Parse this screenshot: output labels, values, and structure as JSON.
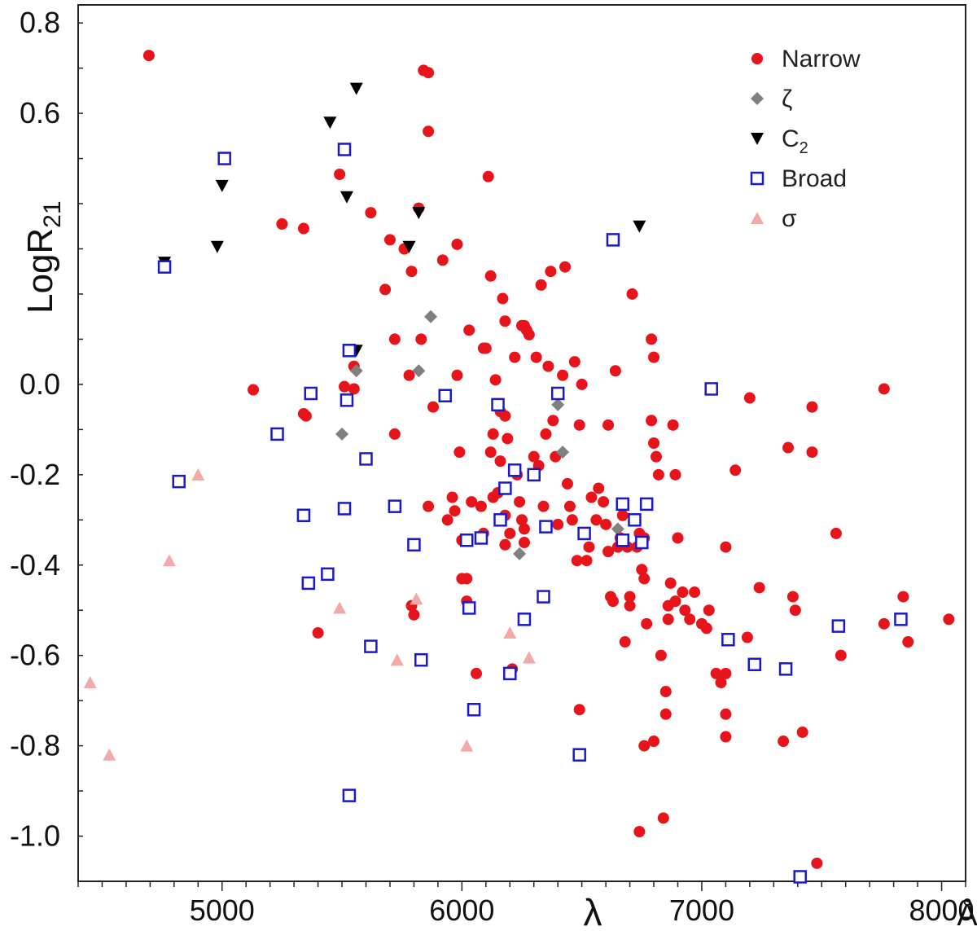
{
  "chart_data": {
    "type": "scatter",
    "title": "",
    "xlabel": "λ",
    "xunit": "Å",
    "ylabel_main": "LogR",
    "ylabel_sub": "21",
    "xlim": [
      4400,
      8100
    ],
    "ylim": [
      -1.1,
      0.84
    ],
    "x_ticks": [
      5000,
      6000,
      7000,
      8000
    ],
    "x_tick_labels": [
      "5000",
      "6000",
      "7000",
      "8000"
    ],
    "y_ticks": [
      0.8,
      0.6,
      0.0,
      -0.2,
      -0.4,
      -0.6,
      -0.8,
      -1.0
    ],
    "y_tick_labels": [
      "0.8",
      "0.6",
      "0.0",
      "-0.2",
      "-0.4",
      "-0.6",
      "-0.8",
      "-1.0"
    ],
    "grid": false,
    "legend_position": "top-right",
    "series": [
      {
        "name": "Narrow",
        "marker": "circle",
        "color": "#e8141c",
        "points": [
          [
            4695,
            0.728
          ],
          [
            5130,
            -0.012
          ],
          [
            5250,
            0.355
          ],
          [
            5340,
            0.345
          ],
          [
            5340,
            -0.065
          ],
          [
            5400,
            -0.55
          ],
          [
            5490,
            0.465
          ],
          [
            5510,
            -0.005
          ],
          [
            5550,
            0.04
          ],
          [
            5550,
            -0.01
          ],
          [
            5680,
            0.21
          ],
          [
            5700,
            0.32
          ],
          [
            5720,
            0.1
          ],
          [
            5720,
            -0.11
          ],
          [
            5760,
            0.3
          ],
          [
            5790,
            0.25
          ],
          [
            5780,
            0.02
          ],
          [
            5800,
            -0.51
          ],
          [
            5790,
            -0.49
          ],
          [
            5820,
            0.39
          ],
          [
            5830,
            0.1
          ],
          [
            5840,
            0.695
          ],
          [
            5860,
            0.69
          ],
          [
            5860,
            0.56
          ],
          [
            5860,
            -0.27
          ],
          [
            5880,
            -0.05
          ],
          [
            5920,
            0.275
          ],
          [
            5940,
            -0.3
          ],
          [
            5960,
            -0.25
          ],
          [
            5980,
            0.31
          ],
          [
            5970,
            -0.28
          ],
          [
            5980,
            0.02
          ],
          [
            5990,
            -0.15
          ],
          [
            6000,
            -0.43
          ],
          [
            6000,
            -0.345
          ],
          [
            6020,
            -0.48
          ],
          [
            6020,
            -0.43
          ],
          [
            6030,
            0.12
          ],
          [
            6040,
            -0.26
          ],
          [
            6060,
            -0.64
          ],
          [
            6080,
            -0.27
          ],
          [
            6090,
            -0.33
          ],
          [
            6100,
            0.08
          ],
          [
            6110,
            0.46
          ],
          [
            6120,
            0.24
          ],
          [
            6130,
            -0.11
          ],
          [
            6130,
            -0.25
          ],
          [
            6140,
            0.01
          ],
          [
            6150,
            -0.24
          ],
          [
            6160,
            -0.17
          ],
          [
            6170,
            0.19
          ],
          [
            6180,
            0.14
          ],
          [
            6180,
            -0.355
          ],
          [
            6180,
            -0.29
          ],
          [
            6190,
            -0.12
          ],
          [
            6200,
            -0.33
          ],
          [
            6210,
            -0.63
          ],
          [
            6220,
            0.06
          ],
          [
            6230,
            -0.2
          ],
          [
            6240,
            -0.26
          ],
          [
            6250,
            -0.3
          ],
          [
            6260,
            -0.32
          ],
          [
            6260,
            -0.35
          ],
          [
            6260,
            0.13
          ],
          [
            6270,
            0.12
          ],
          [
            6280,
            0.11
          ],
          [
            6300,
            -0.16
          ],
          [
            6320,
            -0.18
          ],
          [
            6330,
            0.22
          ],
          [
            6340,
            -0.27
          ],
          [
            6350,
            -0.11
          ],
          [
            6360,
            0.04
          ],
          [
            6370,
            0.25
          ],
          [
            6380,
            -0.08
          ],
          [
            6390,
            -0.16
          ],
          [
            6400,
            -0.31
          ],
          [
            6420,
            0.02
          ],
          [
            6430,
            0.26
          ],
          [
            6440,
            -0.22
          ],
          [
            6450,
            -0.27
          ],
          [
            6460,
            -0.3
          ],
          [
            6470,
            0.05
          ],
          [
            6480,
            -0.39
          ],
          [
            6490,
            -0.72
          ],
          [
            6490,
            -0.09
          ],
          [
            6500,
            0.0
          ],
          [
            6520,
            -0.39
          ],
          [
            6530,
            -0.36
          ],
          [
            6540,
            -0.25
          ],
          [
            6560,
            -0.3
          ],
          [
            6570,
            -0.23
          ],
          [
            6590,
            -0.26
          ],
          [
            6600,
            -0.31
          ],
          [
            6610,
            -0.37
          ],
          [
            6620,
            -0.47
          ],
          [
            6630,
            -0.48
          ],
          [
            6640,
            0.03
          ],
          [
            6650,
            -0.36
          ],
          [
            6660,
            -0.34
          ],
          [
            6670,
            -0.29
          ],
          [
            6680,
            -0.57
          ],
          [
            6690,
            -0.36
          ],
          [
            6700,
            -0.47
          ],
          [
            6700,
            -0.49
          ],
          [
            6710,
            0.2
          ],
          [
            6720,
            -0.3
          ],
          [
            6730,
            -0.36
          ],
          [
            6740,
            -0.33
          ],
          [
            6750,
            -0.41
          ],
          [
            6760,
            -0.34
          ],
          [
            6760,
            -0.43
          ],
          [
            6770,
            -0.53
          ],
          [
            6790,
            -0.08
          ],
          [
            6790,
            0.1
          ],
          [
            6800,
            0.06
          ],
          [
            6800,
            -0.13
          ],
          [
            6810,
            -0.16
          ],
          [
            6820,
            -0.2
          ],
          [
            6830,
            -0.6
          ],
          [
            6840,
            -0.96
          ],
          [
            6850,
            -0.73
          ],
          [
            6850,
            -0.68
          ],
          [
            6860,
            -0.52
          ],
          [
            6860,
            -0.49
          ],
          [
            6870,
            -0.44
          ],
          [
            6880,
            -0.09
          ],
          [
            6890,
            -0.2
          ],
          [
            6890,
            -0.48
          ],
          [
            6900,
            -0.34
          ],
          [
            6920,
            -0.46
          ],
          [
            6930,
            -0.5
          ],
          [
            6950,
            -0.52
          ],
          [
            6970,
            -0.46
          ],
          [
            7000,
            -0.53
          ],
          [
            7020,
            -0.54
          ],
          [
            7030,
            -0.5
          ],
          [
            7060,
            -0.64
          ],
          [
            7080,
            -0.66
          ],
          [
            7100,
            -0.36
          ],
          [
            7100,
            -0.73
          ],
          [
            7100,
            -0.64
          ],
          [
            7100,
            -0.78
          ],
          [
            7140,
            -0.19
          ],
          [
            7190,
            -0.56
          ],
          [
            7200,
            -0.03
          ],
          [
            7240,
            -0.45
          ],
          [
            7340,
            -0.79
          ],
          [
            7360,
            -0.14
          ],
          [
            7380,
            -0.47
          ],
          [
            7390,
            -0.5
          ],
          [
            7420,
            -0.77
          ],
          [
            7460,
            -0.05
          ],
          [
            7460,
            -0.15
          ],
          [
            7480,
            -1.06
          ],
          [
            7560,
            -0.33
          ],
          [
            7580,
            -0.6
          ],
          [
            7760,
            -0.01
          ],
          [
            7760,
            -0.53
          ],
          [
            7840,
            -0.47
          ],
          [
            7860,
            -0.57
          ],
          [
            8030,
            -0.52
          ],
          [
            6760,
            -0.8
          ],
          [
            6800,
            -0.79
          ],
          [
            6740,
            -0.99
          ],
          [
            6610,
            -0.09
          ],
          [
            5350,
            -0.07
          ],
          [
            5760,
            0.3
          ],
          [
            5620,
            0.38
          ],
          [
            6250,
            0.13
          ],
          [
            6310,
            0.06
          ],
          [
            6180,
            -0.07
          ],
          [
            6090,
            0.08
          ],
          [
            6160,
            -0.06
          ],
          [
            6120,
            -0.15
          ]
        ]
      },
      {
        "name": "ζ",
        "marker": "diamond",
        "color": "#808080",
        "points": [
          [
            5560,
            0.03
          ],
          [
            5500,
            -0.11
          ],
          [
            5820,
            0.03
          ],
          [
            5870,
            0.15
          ],
          [
            6400,
            -0.045
          ],
          [
            6420,
            -0.15
          ],
          [
            6240,
            -0.375
          ],
          [
            6650,
            -0.32
          ]
        ]
      },
      {
        "name": "C",
        "name_sub": "2",
        "marker": "triangle-down",
        "color": "#000000",
        "points": [
          [
            4760,
            0.27
          ],
          [
            4980,
            0.305
          ],
          [
            5000,
            0.44
          ],
          [
            5450,
            0.58
          ],
          [
            5520,
            0.415
          ],
          [
            5560,
            0.655
          ],
          [
            5560,
            0.075
          ],
          [
            5780,
            0.305
          ],
          [
            5820,
            0.38
          ],
          [
            6740,
            0.35
          ]
        ]
      },
      {
        "name": "Broad",
        "marker": "square-open",
        "color": "#1a1acc",
        "points": [
          [
            4760,
            0.26
          ],
          [
            4820,
            -0.215
          ],
          [
            5010,
            0.5
          ],
          [
            5230,
            -0.11
          ],
          [
            5340,
            -0.29
          ],
          [
            5360,
            -0.44
          ],
          [
            5370,
            -0.02
          ],
          [
            5440,
            -0.42
          ],
          [
            5510,
            -0.275
          ],
          [
            5510,
            0.52
          ],
          [
            5520,
            -0.035
          ],
          [
            5530,
            0.075
          ],
          [
            5530,
            -0.91
          ],
          [
            5600,
            -0.165
          ],
          [
            5620,
            -0.58
          ],
          [
            5720,
            -0.27
          ],
          [
            5800,
            -0.355
          ],
          [
            5830,
            -0.61
          ],
          [
            5930,
            -0.025
          ],
          [
            6020,
            -0.345
          ],
          [
            6030,
            -0.495
          ],
          [
            6050,
            -0.72
          ],
          [
            6080,
            -0.34
          ],
          [
            6150,
            -0.045
          ],
          [
            6160,
            -0.3
          ],
          [
            6180,
            -0.23
          ],
          [
            6200,
            -0.64
          ],
          [
            6220,
            -0.19
          ],
          [
            6260,
            -0.52
          ],
          [
            6300,
            -0.2
          ],
          [
            6340,
            -0.47
          ],
          [
            6350,
            -0.315
          ],
          [
            6400,
            -0.02
          ],
          [
            6490,
            -0.82
          ],
          [
            6510,
            -0.33
          ],
          [
            6630,
            0.32
          ],
          [
            6670,
            -0.265
          ],
          [
            6670,
            -0.345
          ],
          [
            6720,
            -0.3
          ],
          [
            6750,
            -0.35
          ],
          [
            6770,
            -0.265
          ],
          [
            7040,
            -0.01
          ],
          [
            7110,
            -0.565
          ],
          [
            7220,
            -0.62
          ],
          [
            7350,
            -0.63
          ],
          [
            7410,
            -1.09
          ],
          [
            7570,
            -0.535
          ],
          [
            7830,
            -0.52
          ]
        ]
      },
      {
        "name": "σ",
        "marker": "triangle-up",
        "color": "#f4a9a9",
        "points": [
          [
            4450,
            -0.66
          ],
          [
            4530,
            -0.82
          ],
          [
            4780,
            -0.39
          ],
          [
            4900,
            -0.2
          ],
          [
            5490,
            -0.495
          ],
          [
            5730,
            -0.61
          ],
          [
            5810,
            -0.475
          ],
          [
            6020,
            -0.8
          ],
          [
            6200,
            -0.55
          ],
          [
            6280,
            -0.605
          ]
        ]
      }
    ]
  }
}
